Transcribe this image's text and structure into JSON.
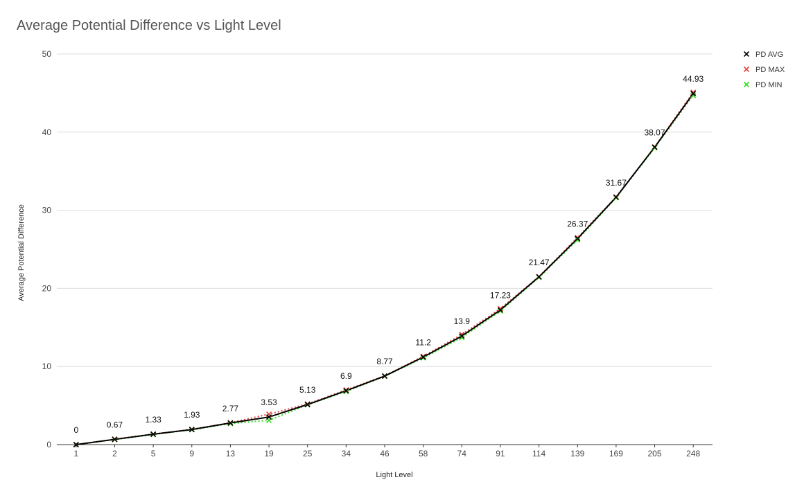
{
  "chart_data": {
    "type": "line",
    "title": "Average Potential Difference vs Light Level",
    "xlabel": "Light Level",
    "ylabel": "Average Potential Difference",
    "categories": [
      "1",
      "2",
      "5",
      "9",
      "13",
      "19",
      "25",
      "34",
      "46",
      "58",
      "74",
      "91",
      "114",
      "139",
      "169",
      "205",
      "248"
    ],
    "ylim": [
      0,
      50
    ],
    "yticks": [
      0,
      10,
      20,
      30,
      40,
      50
    ],
    "grid": true,
    "legend": "top-right",
    "series": [
      {
        "name": "PD AVG",
        "color": "#000000",
        "line": "solid",
        "marker": "x",
        "values": [
          0,
          0.67,
          1.33,
          1.93,
          2.77,
          3.53,
          5.13,
          6.9,
          8.77,
          11.2,
          13.9,
          17.23,
          21.47,
          26.37,
          31.67,
          38.07,
          44.93
        ]
      },
      {
        "name": "PD MAX",
        "color": "#e0443e",
        "line": "dotted",
        "marker": "x",
        "values": [
          0,
          0.7,
          1.35,
          1.95,
          2.8,
          3.9,
          5.2,
          7.0,
          8.8,
          11.3,
          14.1,
          17.4,
          21.5,
          26.5,
          31.7,
          38.1,
          45.1
        ]
      },
      {
        "name": "PD MIN",
        "color": "#33dd22",
        "line": "dotted",
        "marker": "x",
        "values": [
          0,
          0.65,
          1.3,
          1.9,
          2.7,
          3.1,
          5.1,
          6.8,
          8.75,
          11.1,
          13.7,
          17.1,
          21.4,
          26.2,
          31.6,
          38.0,
          44.7
        ]
      }
    ],
    "data_labels": [
      "0",
      "0.67",
      "1.33",
      "1.93",
      "2.77",
      "3.53",
      "5.13",
      "6.9",
      "8.77",
      "11.2",
      "13.9",
      "17.23",
      "21.47",
      "26.37",
      "31.67",
      "38.07",
      "44.93"
    ]
  }
}
